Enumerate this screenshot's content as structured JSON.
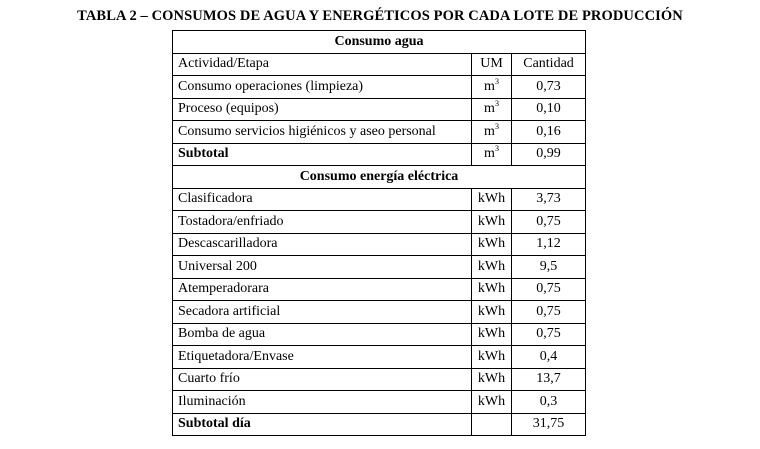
{
  "caption": "TABLA 2 – CONSUMOS DE AGUA Y ENERGÉTICOS POR CADA LOTE DE PRODUCCIÓN",
  "water": {
    "title": "Consumo agua",
    "header": {
      "activity": "Actividad/Etapa",
      "um": "UM",
      "qty": "Cantidad"
    },
    "rows": [
      {
        "name": "Consumo operaciones (limpieza)",
        "um": "m",
        "um_exp": "3",
        "qty": "0,73"
      },
      {
        "name": "Proceso (equipos)",
        "um": "m",
        "um_exp": "3",
        "qty": "0,10"
      },
      {
        "name": "Consumo servicios higiénicos y aseo personal",
        "um": "m",
        "um_exp": "3",
        "qty": "0,16"
      }
    ],
    "subtotal": {
      "name": "Subtotal",
      "um": "m",
      "um_exp": "3",
      "qty": "0,99"
    }
  },
  "energy": {
    "title": "Consumo energía eléctrica",
    "rows": [
      {
        "name": "Clasificadora",
        "um": "kWh",
        "qty": "3,73"
      },
      {
        "name": "Tostadora/enfriado",
        "um": "kWh",
        "qty": "0,75"
      },
      {
        "name": "Descascarilladora",
        "um": "kWh",
        "qty": "1,12"
      },
      {
        "name": "Universal 200",
        "um": "kWh",
        "qty": "9,5"
      },
      {
        "name": "Atemperadorara",
        "um": "kWh",
        "qty": "0,75"
      },
      {
        "name": "Secadora artificial",
        "um": "kWh",
        "qty": "0,75"
      },
      {
        "name": "Bomba de agua",
        "um": "kWh",
        "qty": "0,75"
      },
      {
        "name": "Etiquetadora/Envase",
        "um": "kWh",
        "qty": "0,4"
      },
      {
        "name": "Cuarto frío",
        "um": "kWh",
        "qty": "13,7"
      },
      {
        "name": "Iluminación",
        "um": "kWh",
        "qty": "0,3"
      }
    ],
    "subtotal": {
      "name": "Subtotal día",
      "um": "",
      "qty": "31,75"
    }
  }
}
